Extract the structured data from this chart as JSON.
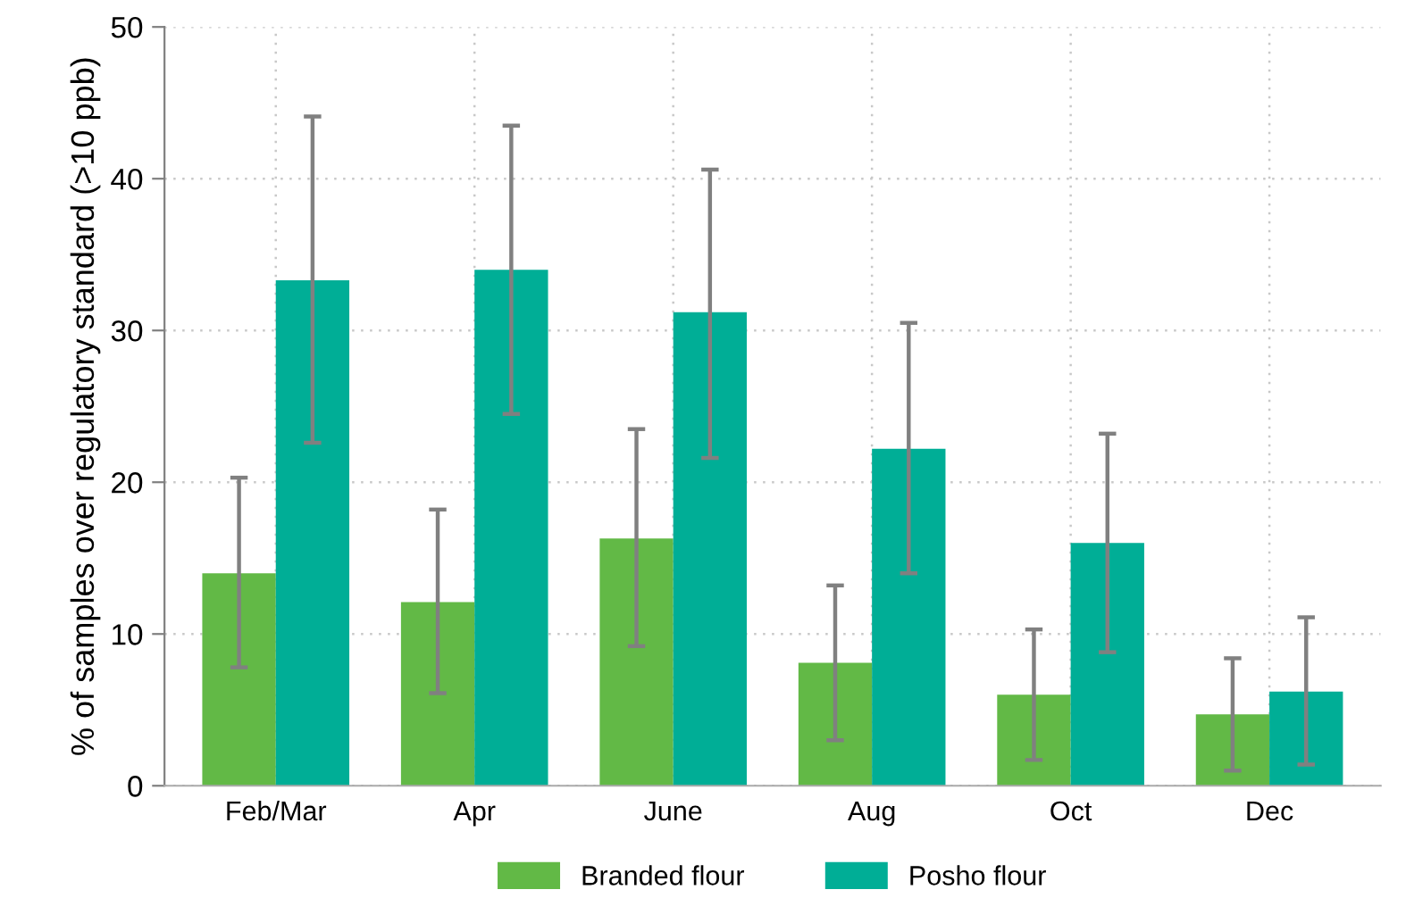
{
  "chart_data": {
    "type": "bar",
    "ylabel": "% of samples over regulatory standard (>10 ppb)",
    "categories": [
      "Feb/Mar",
      "Apr",
      "June",
      "Aug",
      "Oct",
      "Dec"
    ],
    "series": [
      {
        "name": "Branded flour",
        "color": "#62b946",
        "values": [
          14.0,
          12.1,
          16.3,
          8.1,
          6.0,
          4.7
        ],
        "errors": [
          [
            7.8,
            20.3
          ],
          [
            6.1,
            18.2
          ],
          [
            9.2,
            23.5
          ],
          [
            3.0,
            13.2
          ],
          [
            1.7,
            10.3
          ],
          [
            1.0,
            8.4
          ]
        ]
      },
      {
        "name": "Posho flour",
        "color": "#00ae96",
        "values": [
          33.3,
          34.0,
          31.2,
          22.2,
          16.0,
          6.2
        ],
        "errors": [
          [
            22.6,
            44.1
          ],
          [
            24.5,
            43.5
          ],
          [
            21.6,
            40.6
          ],
          [
            14.0,
            30.5
          ],
          [
            8.8,
            23.2
          ],
          [
            1.4,
            11.1
          ]
        ]
      }
    ],
    "ylim": [
      0,
      50
    ],
    "yticks": [
      0,
      10,
      20,
      30,
      40,
      50
    ],
    "grid": true,
    "legend": "bottom"
  }
}
